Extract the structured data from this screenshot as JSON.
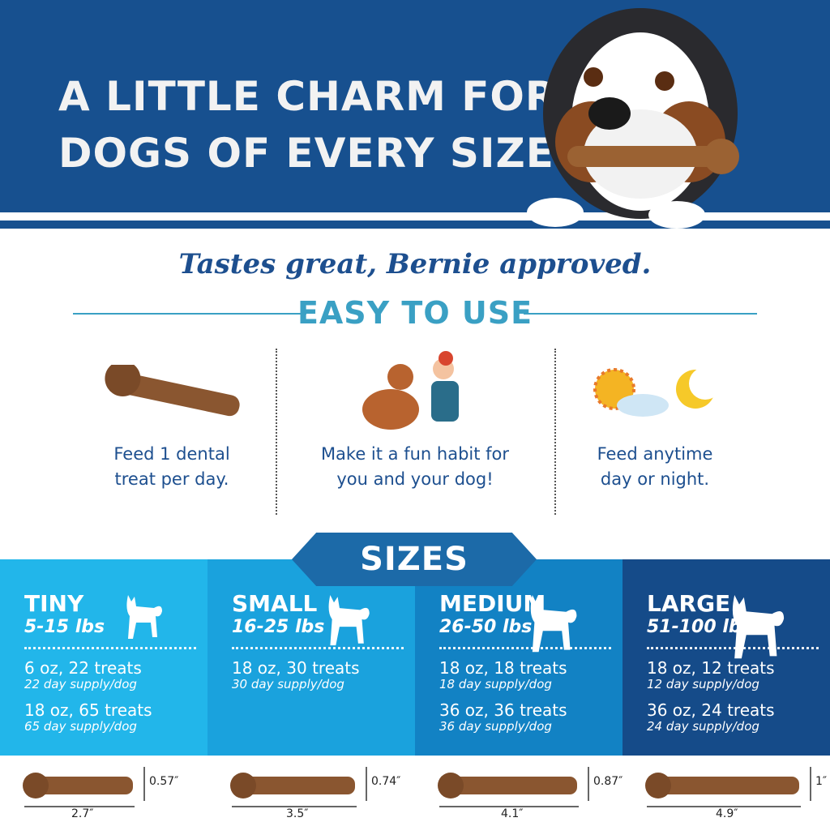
{
  "header": {
    "headline_line1": "A LITTLE CHARM FOR",
    "headline_line2": "DOGS OF EVERY SIZE"
  },
  "tagline": "Tastes great, Bernie approved.",
  "easy": {
    "title": "EASY TO USE",
    "features": [
      {
        "icon": "dental-treat-icon",
        "line1": "Feed 1 dental",
        "line2": "treat per day."
      },
      {
        "icon": "high-five-dog-icon",
        "line1": "Make it a fun habit for",
        "line2": "you and your dog!"
      },
      {
        "icon": "sun-moon-icon",
        "line1": "Feed anytime",
        "line2": "day or night."
      }
    ]
  },
  "sizes": {
    "title": "SIZES",
    "columns": [
      {
        "name": "TINY",
        "lbs": "5-15 lbs",
        "color": "#22b6ea",
        "packs": [
          {
            "a": "6 oz, 22 treats",
            "b": "22 day supply/dog"
          },
          {
            "a": "18 oz, 65 treats",
            "b": "65 day supply/dog"
          }
        ],
        "length": "2.7″",
        "height": "0.57″"
      },
      {
        "name": "SMALL",
        "lbs": "16-25 lbs",
        "color": "#1aa2dd",
        "packs": [
          {
            "a": "18 oz, 30 treats",
            "b": "30 day supply/dog"
          }
        ],
        "length": "3.5″",
        "height": "0.74″"
      },
      {
        "name": "MEDIUM",
        "lbs": "26-50 lbs",
        "color": "#1282c4",
        "packs": [
          {
            "a": "18 oz, 18 treats",
            "b": "18 day supply/dog"
          },
          {
            "a": "36 oz, 36 treats",
            "b": "36 day supply/dog"
          }
        ],
        "length": "4.1″",
        "height": "0.87″"
      },
      {
        "name": "LARGE",
        "lbs": "51-100 lbs",
        "color": "#154b89",
        "packs": [
          {
            "a": "18 oz, 12 treats",
            "b": "12 day supply/dog"
          },
          {
            "a": "36 oz, 24 treats",
            "b": "24 day supply/dog"
          }
        ],
        "length": "4.9″",
        "height": "1″"
      }
    ]
  }
}
